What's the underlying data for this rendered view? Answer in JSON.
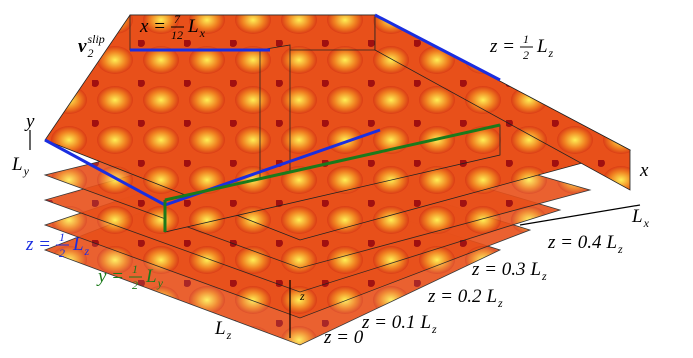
{
  "labels": {
    "x_plane": {
      "lhs": "x =",
      "num": "7",
      "den": "12",
      "base": "L",
      "sub": "x"
    },
    "slip": {
      "base": "v",
      "sub": "2",
      "sup": "slip"
    },
    "z_half_top": {
      "lhs": "z =",
      "num": "1",
      "den": "2",
      "base": "L",
      "sub": "z"
    },
    "y_axis": "y",
    "Ly": {
      "base": "L",
      "sub": "y"
    },
    "x_axis": "x",
    "Lx": {
      "base": "L",
      "sub": "x"
    },
    "z_half_blue": {
      "lhs": "z =",
      "num": "1",
      "den": "2",
      "base": "L",
      "sub": "z"
    },
    "y_half_green": {
      "lhs": "y =",
      "num": "1",
      "den": "2",
      "base": "L",
      "sub": "y"
    },
    "z04": {
      "lhs": "z = 0.4",
      "base": "L",
      "sub": "z"
    },
    "z03": {
      "lhs": "z = 0.3",
      "base": "L",
      "sub": "z"
    },
    "z02": {
      "lhs": "z = 0.2",
      "base": "L",
      "sub": "z"
    },
    "z01": {
      "lhs": "z = 0.1",
      "base": "L",
      "sub": "z"
    },
    "z0": "z = 0",
    "Lz": {
      "base": "L",
      "sub": "z"
    },
    "z_small": "z"
  }
}
